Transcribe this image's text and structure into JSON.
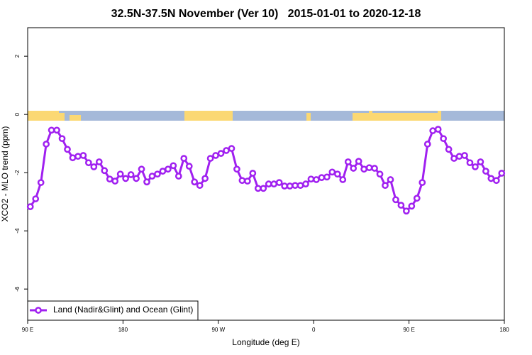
{
  "chart_data": {
    "type": "line",
    "title": "32.5N-37.5N November (Ver 10)   2015-01-01 to 2020-12-18",
    "xlabel": "Longitude (deg E)",
    "ylabel": "XCO2 - MLO trend (ppm)",
    "x": [
      92.5,
      97.5,
      102.5,
      107.5,
      112.5,
      117.5,
      122.5,
      127.5,
      132.5,
      137.5,
      142.5,
      147.5,
      152.5,
      157.5,
      162.5,
      167.5,
      172.5,
      177.5,
      182.5,
      187.5,
      192.5,
      197.5,
      202.5,
      207.5,
      212.5,
      217.5,
      222.5,
      227.5,
      232.5,
      237.5,
      242.5,
      247.5,
      252.5,
      257.5,
      262.5,
      267.5,
      272.5,
      277.5,
      282.5,
      287.5,
      292.5,
      297.5,
      302.5,
      307.5,
      312.5,
      317.5,
      322.5,
      327.5,
      332.5,
      337.5,
      342.5,
      347.5,
      352.5,
      357.5,
      362.5,
      367.5,
      372.5,
      377.5,
      382.5,
      387.5,
      392.5,
      397.5,
      402.5,
      407.5,
      412.5,
      417.5,
      422.5,
      427.5,
      432.5,
      437.5,
      442.5,
      447.5,
      452.5,
      457.5,
      462.5,
      467.5,
      472.5,
      477.5,
      482.5,
      487.5,
      492.5,
      497.5,
      502.5,
      507.5,
      512.5,
      517.5,
      522.5,
      527.5,
      532.5,
      537.5
    ],
    "series": [
      {
        "name": "Land (Nadir&Glint) and Ocean (Glint)",
        "color": "#a020f0",
        "values": [
          -3.17,
          -2.9,
          -2.34,
          -1.02,
          -0.54,
          -0.54,
          -0.83,
          -1.2,
          -1.49,
          -1.44,
          -1.41,
          -1.66,
          -1.8,
          -1.63,
          -1.93,
          -2.22,
          -2.29,
          -2.05,
          -2.2,
          -2.07,
          -2.2,
          -1.88,
          -2.32,
          -2.12,
          -2.05,
          -1.95,
          -1.88,
          -1.76,
          -2.12,
          -1.51,
          -1.78,
          -2.32,
          -2.44,
          -2.2,
          -1.51,
          -1.41,
          -1.34,
          -1.24,
          -1.17,
          -1.88,
          -2.27,
          -2.29,
          -2.02,
          -2.54,
          -2.54,
          -2.39,
          -2.39,
          -2.34,
          -2.46,
          -2.46,
          -2.44,
          -2.44,
          -2.39,
          -2.22,
          -2.24,
          -2.17,
          -2.15,
          -1.98,
          -2.05,
          -2.24,
          -1.63,
          -1.85,
          -1.61,
          -1.88,
          -1.83,
          -1.85,
          -2.05,
          -2.44,
          -2.24,
          -2.93,
          -3.12,
          -3.32,
          -3.15,
          -2.88,
          -2.34,
          -1.02,
          -0.56,
          -0.51,
          -0.83,
          -1.2,
          -1.51,
          -1.44,
          -1.41,
          -1.66,
          -1.8,
          -1.63,
          -1.95,
          -2.2,
          -2.27,
          -2.02
        ]
      }
    ],
    "xlim": [
      90,
      540
    ],
    "xticks": [
      {
        "value": 90,
        "label": "90 E"
      },
      {
        "value": 180,
        "label": "180"
      },
      {
        "value": 270,
        "label": "90 W"
      },
      {
        "value": 360,
        "label": "0"
      },
      {
        "value": 450,
        "label": "90 E"
      },
      {
        "value": 540,
        "label": "180"
      }
    ],
    "ylim": [
      -7.07,
      2.98
    ],
    "yticks": [
      -6,
      -4,
      -2,
      0,
      2
    ],
    "legend": "bottom-left"
  }
}
